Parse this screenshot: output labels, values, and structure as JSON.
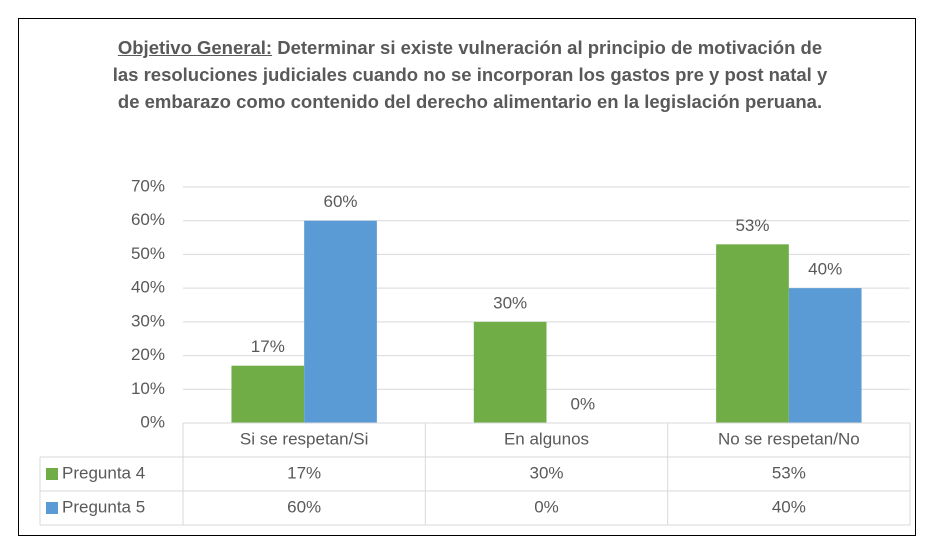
{
  "chart_data": {
    "type": "bar",
    "title_prefix": "Objetivo General:",
    "title": "Determinar si existe vulneración al principio de motivación de las resoluciones judiciales cuando no se incorporan los gastos pre y post natal y de embarazo como contenido del derecho alimentario en la legislación peruana.",
    "categories": [
      "Si se respetan/Si",
      "En algunos",
      "No se respetan/No"
    ],
    "series": [
      {
        "name": "Pregunta 4",
        "color": "#70ad47",
        "values": [
          17,
          30,
          53
        ],
        "value_labels": [
          "17%",
          "30%",
          "53%"
        ]
      },
      {
        "name": "Pregunta 5",
        "color": "#5b9bd5",
        "values": [
          60,
          0,
          40
        ],
        "value_labels": [
          "60%",
          "0%",
          "40%"
        ]
      }
    ],
    "ylim": [
      0,
      70
    ],
    "yticks": [
      {
        "value": 0,
        "label": "0%"
      },
      {
        "value": 10,
        "label": "10%"
      },
      {
        "value": 20,
        "label": "20%"
      },
      {
        "value": 30,
        "label": "30%"
      },
      {
        "value": 40,
        "label": "40%"
      },
      {
        "value": 50,
        "label": "50%"
      },
      {
        "value": 60,
        "label": "60%"
      },
      {
        "value": 70,
        "label": "70%"
      }
    ],
    "grid": true,
    "data_table": true
  }
}
